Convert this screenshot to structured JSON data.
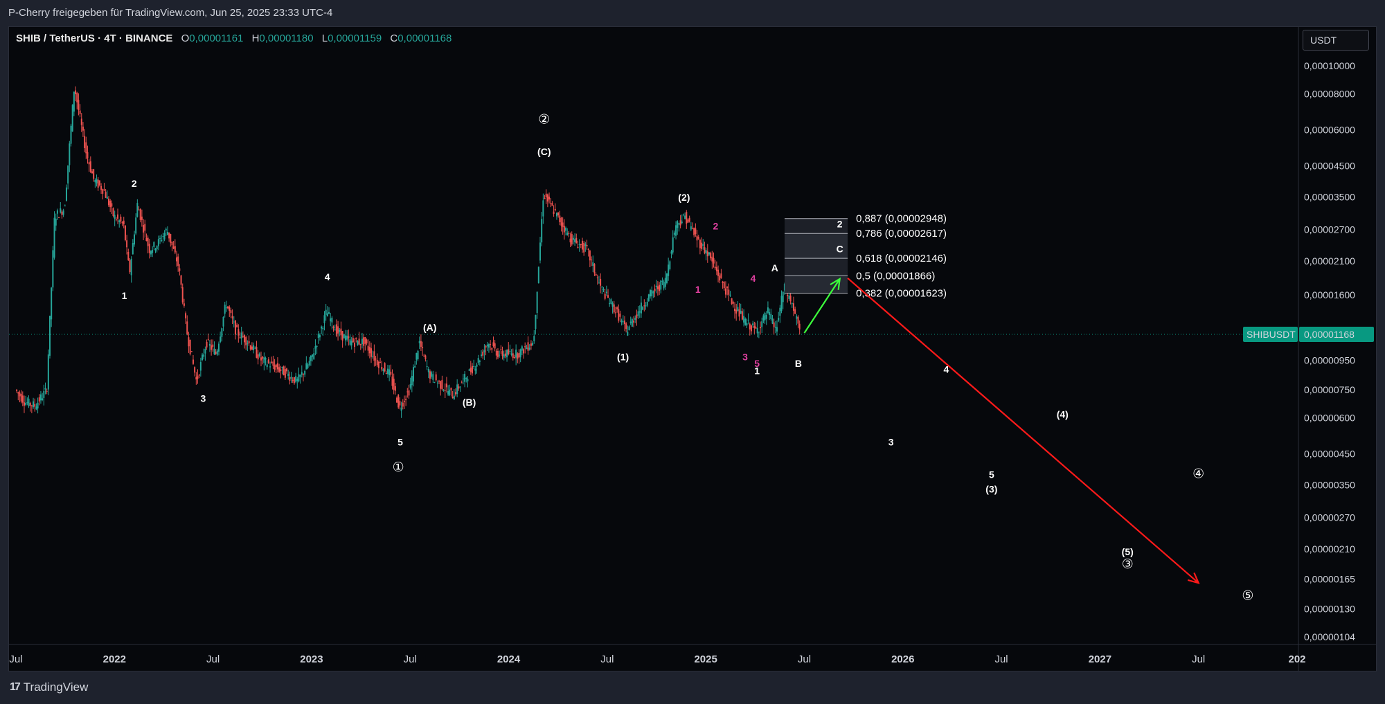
{
  "header": {
    "publisher": "P-Cherry freigegeben für TradingView.com, Jun 25, 2025 23:33 UTC-4"
  },
  "legend": {
    "symbol": "SHIB / TetherUS · 4T · BINANCE",
    "open_label": "O",
    "open": "0,00001161",
    "high_label": "H",
    "high": "0,00001180",
    "low_label": "L",
    "low": "0,00001159",
    "close_label": "C",
    "close": "0,00001168"
  },
  "currency": "USDT",
  "footer": {
    "brand": "TradingView",
    "brand_icon": "tradingview-logo-icon"
  },
  "colors": {
    "background": "#06080c",
    "up": "#26a69a",
    "down": "#ef5350",
    "price_label": "#089981",
    "projection_red": "#ff1a1a",
    "projection_green": "#3cff3c",
    "pink_label": "#e040a0"
  },
  "chart_data": {
    "type": "candlestick",
    "title": "",
    "y_scale": "log",
    "y_ticks": [
      "0,00010000",
      "0,00008000",
      "0,00006000",
      "0,00004500",
      "0,00003500",
      "0,00002700",
      "0,00002100",
      "0,00001600",
      "0,00000950",
      "0,00000750",
      "0,00000600",
      "0,00000450",
      "0,00000350",
      "0,00000270",
      "0,00000210",
      "0,00000165",
      "0,00000130",
      "0,00000104"
    ],
    "y_tick_values": [
      0.0001,
      8e-05,
      6e-05,
      4.5e-05,
      3.5e-05,
      2.7e-05,
      2.1e-05,
      1.6e-05,
      9.5e-06,
      7.5e-06,
      6e-06,
      4.5e-06,
      3.5e-06,
      2.7e-06,
      2.1e-06,
      1.65e-06,
      1.3e-06,
      1.04e-06
    ],
    "x_ticks": [
      {
        "label": "Jul",
        "t": 2021.5,
        "year": false
      },
      {
        "label": "2022",
        "t": 2022.0,
        "year": true
      },
      {
        "label": "Jul",
        "t": 2022.5,
        "year": false
      },
      {
        "label": "2023",
        "t": 2023.0,
        "year": true
      },
      {
        "label": "Jul",
        "t": 2023.5,
        "year": false
      },
      {
        "label": "2024",
        "t": 2024.0,
        "year": true
      },
      {
        "label": "Jul",
        "t": 2024.5,
        "year": false
      },
      {
        "label": "2025",
        "t": 2025.0,
        "year": true
      },
      {
        "label": "Jul",
        "t": 2025.5,
        "year": false
      },
      {
        "label": "2026",
        "t": 2026.0,
        "year": true
      },
      {
        "label": "Jul",
        "t": 2026.5,
        "year": false
      },
      {
        "label": "2027",
        "t": 2027.0,
        "year": true
      },
      {
        "label": "Jul",
        "t": 2027.5,
        "year": false
      },
      {
        "label": "202",
        "t": 2028.0,
        "year": true
      }
    ],
    "price_path": [
      [
        2021.5,
        7.5e-06
      ],
      [
        2021.55,
        6.8e-06
      ],
      [
        2021.6,
        6.6e-06
      ],
      [
        2021.66,
        7.5e-06
      ],
      [
        2021.7,
        3e-05
      ],
      [
        2021.75,
        3.2e-05
      ],
      [
        2021.8,
        8.5e-05
      ],
      [
        2021.83,
        6.5e-05
      ],
      [
        2021.86,
        5e-05
      ],
      [
        2021.9,
        4e-05
      ],
      [
        2021.95,
        3.7e-05
      ],
      [
        2022.0,
        3e-05
      ],
      [
        2022.05,
        2.8e-05
      ],
      [
        2022.08,
        1.9e-05
      ],
      [
        2022.12,
        3.3e-05
      ],
      [
        2022.18,
        2.3e-05
      ],
      [
        2022.22,
        2.4e-05
      ],
      [
        2022.27,
        2.7e-05
      ],
      [
        2022.33,
        2e-05
      ],
      [
        2022.37,
        1.2e-05
      ],
      [
        2022.42,
        8e-06
      ],
      [
        2022.47,
        1.1e-05
      ],
      [
        2022.52,
        1e-05
      ],
      [
        2022.57,
        1.5e-05
      ],
      [
        2022.62,
        1.2e-05
      ],
      [
        2022.68,
        1.1e-05
      ],
      [
        2022.75,
        9.5e-06
      ],
      [
        2022.82,
        9e-06
      ],
      [
        2022.88,
        8.5e-06
      ],
      [
        2022.93,
        8e-06
      ],
      [
        2023.0,
        9.5e-06
      ],
      [
        2023.08,
        1.4e-05
      ],
      [
        2023.13,
        1.2e-05
      ],
      [
        2023.2,
        1.1e-05
      ],
      [
        2023.27,
        1.1e-05
      ],
      [
        2023.33,
        9.5e-06
      ],
      [
        2023.4,
        8.5e-06
      ],
      [
        2023.45,
        6.5e-06
      ],
      [
        2023.5,
        7.5e-06
      ],
      [
        2023.55,
        1.1e-05
      ],
      [
        2023.6,
        8.5e-06
      ],
      [
        2023.66,
        7.8e-06
      ],
      [
        2023.72,
        7.2e-06
      ],
      [
        2023.78,
        8.2e-06
      ],
      [
        2023.85,
        9.5e-06
      ],
      [
        2023.9,
        1.1e-05
      ],
      [
        2023.95,
        1e-05
      ],
      [
        2024.05,
        1e-05
      ],
      [
        2024.13,
        1.1e-05
      ],
      [
        2024.18,
        3.6e-05
      ],
      [
        2024.25,
        3e-05
      ],
      [
        2024.32,
        2.5e-05
      ],
      [
        2024.4,
        2.3e-05
      ],
      [
        2024.47,
        1.7e-05
      ],
      [
        2024.55,
        1.4e-05
      ],
      [
        2024.6,
        1.2e-05
      ],
      [
        2024.66,
        1.4e-05
      ],
      [
        2024.72,
        1.6e-05
      ],
      [
        2024.8,
        1.8e-05
      ],
      [
        2024.85,
        2.8e-05
      ],
      [
        2024.9,
        3e-05
      ],
      [
        2024.96,
        2.5e-05
      ],
      [
        2025.02,
        2.2e-05
      ],
      [
        2025.08,
        1.8e-05
      ],
      [
        2025.14,
        1.5e-05
      ],
      [
        2025.2,
        1.3e-05
      ],
      [
        2025.26,
        1.2e-05
      ],
      [
        2025.32,
        1.4e-05
      ],
      [
        2025.36,
        1.2e-05
      ],
      [
        2025.4,
        1.7e-05
      ],
      [
        2025.44,
        1.5e-05
      ],
      [
        2025.48,
        1.2e-05
      ]
    ],
    "last_price_label": "0,00001168",
    "last_price_value": 1.168e-05,
    "symbol_tag": "SHIBUSDT",
    "fib_levels": [
      {
        "label": "0,887 (0,00002948)",
        "value": 2.948e-05
      },
      {
        "label": "0,786 (0,00002617)",
        "value": 2.617e-05
      },
      {
        "label": "0,618 (0,00002146)",
        "value": 2.146e-05
      },
      {
        "label": "0,5 (0,00001866)",
        "value": 1.866e-05
      },
      {
        "label": "0,382 (0,00001623)",
        "value": 1.623e-05
      }
    ],
    "projection_up": {
      "from": [
        2025.5,
        1.18e-05
      ],
      "to": [
        2025.68,
        1.82e-05
      ]
    },
    "projection_down": {
      "from": [
        2025.72,
        1.83e-05
      ],
      "to": [
        2027.5,
        1.6e-06
      ]
    },
    "wave_labels": [
      {
        "text": "2",
        "t": 2022.1,
        "v": 3.8e-05
      },
      {
        "text": "1",
        "t": 2022.05,
        "v": 1.55e-05
      },
      {
        "text": "3",
        "t": 2022.45,
        "v": 6.8e-06
      },
      {
        "text": "4",
        "t": 2023.08,
        "v": 1.8e-05
      },
      {
        "text": "(A)",
        "t": 2023.6,
        "v": 1.2e-05
      },
      {
        "text": "5",
        "t": 2023.45,
        "v": 4.8e-06
      },
      {
        "text": "①",
        "t": 2023.44,
        "v": 3.9e-06
      },
      {
        "text": "(B)",
        "t": 2023.8,
        "v": 6.6e-06
      },
      {
        "text": "②",
        "t": 2024.18,
        "v": 6.3e-05
      },
      {
        "text": "(C)",
        "t": 2024.18,
        "v": 4.9e-05
      },
      {
        "text": "(2)",
        "t": 2024.89,
        "v": 3.4e-05
      },
      {
        "text": "(1)",
        "t": 2024.58,
        "v": 9.5e-06
      },
      {
        "text": "2",
        "t": 2025.05,
        "v": 2.7e-05,
        "pink": true
      },
      {
        "text": "1",
        "t": 2024.96,
        "v": 1.63e-05,
        "pink": true
      },
      {
        "text": "4",
        "t": 2025.24,
        "v": 1.78e-05,
        "pink": true
      },
      {
        "text": "3",
        "t": 2025.2,
        "v": 9.5e-06,
        "pink": true
      },
      {
        "text": "5",
        "t": 2025.26,
        "v": 9e-06,
        "pink": true
      },
      {
        "text": "A",
        "t": 2025.35,
        "v": 1.93e-05
      },
      {
        "text": "2",
        "t": 2025.68,
        "v": 2.75e-05
      },
      {
        "text": "C",
        "t": 2025.68,
        "v": 2.25e-05
      },
      {
        "text": "1",
        "t": 2025.26,
        "v": 8.5e-06
      },
      {
        "text": "B",
        "t": 2025.47,
        "v": 9e-06
      },
      {
        "text": "4",
        "t": 2026.22,
        "v": 8.6e-06
      },
      {
        "text": "(4)",
        "t": 2026.81,
        "v": 6e-06
      },
      {
        "text": "3",
        "t": 2025.94,
        "v": 4.8e-06
      },
      {
        "text": "5",
        "t": 2027.45,
        "v": 3.7e-06,
        "note": "placeholder"
      },
      {
        "text": "(3)",
        "t": 2026.45,
        "v": 3.3e-06
      },
      {
        "text": "④",
        "t": 2027.5,
        "v": 3.7e-06
      },
      {
        "text": "(5)",
        "t": 2027.14,
        "v": 2e-06
      },
      {
        "text": "③",
        "t": 2027.14,
        "v": 1.8e-06
      },
      {
        "text": "⑤",
        "t": 2027.75,
        "v": 1.4e-06
      }
    ]
  }
}
